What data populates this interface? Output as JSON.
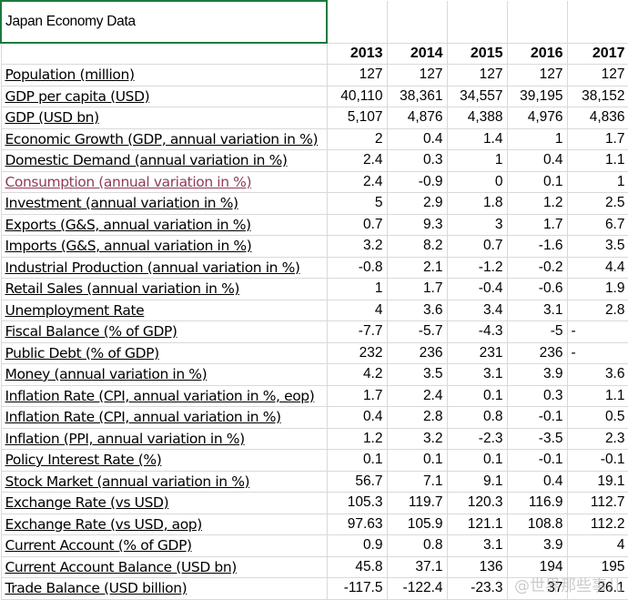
{
  "title": "Japan Economy Data",
  "years": [
    "2013",
    "2014",
    "2015",
    "2016",
    "2017"
  ],
  "rows": [
    {
      "label": "Population (million)",
      "values": [
        "127",
        "127",
        "127",
        "127",
        "127"
      ]
    },
    {
      "label": "GDP per capita (USD)",
      "values": [
        "40,110",
        "38,361",
        "34,557",
        "39,195",
        "38,152"
      ]
    },
    {
      "label": "GDP (USD bn)",
      "values": [
        "5,107",
        "4,876",
        "4,388",
        "4,976",
        "4,836"
      ]
    },
    {
      "label": "Economic Growth (GDP, annual variation in %)",
      "values": [
        "2",
        "0.4",
        "1.4",
        "1",
        "1.7"
      ]
    },
    {
      "label": "Domestic Demand (annual variation in %)",
      "values": [
        "2.4",
        "0.3",
        "1",
        "0.4",
        "1.1"
      ]
    },
    {
      "label": "Consumption (annual variation in %)",
      "values": [
        "2.4",
        "-0.9",
        "0",
        "0.1",
        "1"
      ]
    },
    {
      "label": "Investment (annual variation in %)",
      "values": [
        "5",
        "2.9",
        "1.8",
        "1.2",
        "2.5"
      ]
    },
    {
      "label": "Exports (G&S, annual variation in %)",
      "values": [
        "0.7",
        "9.3",
        "3",
        "1.7",
        "6.7"
      ]
    },
    {
      "label": "Imports (G&S, annual variation in %)",
      "values": [
        "3.2",
        "8.2",
        "0.7",
        "-1.6",
        "3.5"
      ]
    },
    {
      "label": "Industrial Production (annual variation in %)",
      "values": [
        "-0.8",
        "2.1",
        "-1.2",
        "-0.2",
        "4.4"
      ]
    },
    {
      "label": "Retail Sales (annual variation in %)",
      "values": [
        "1",
        "1.7",
        "-0.4",
        "-0.6",
        "1.9"
      ]
    },
    {
      "label": "Unemployment Rate",
      "values": [
        "4",
        "3.6",
        "3.4",
        "3.1",
        "2.8"
      ]
    },
    {
      "label": "Fiscal Balance (% of GDP)",
      "values": [
        "-7.7",
        "-5.7",
        "-4.3",
        "-5",
        "-"
      ]
    },
    {
      "label": "Public Debt (% of GDP)",
      "values": [
        "232",
        "236",
        "231",
        "236",
        "-"
      ]
    },
    {
      "label": "Money (annual variation in %)",
      "values": [
        "4.2",
        "3.5",
        "3.1",
        "3.9",
        "3.6"
      ]
    },
    {
      "label": "Inflation Rate (CPI, annual variation in %, eop)",
      "values": [
        "1.7",
        "2.4",
        "0.1",
        "0.3",
        "1.1"
      ]
    },
    {
      "label": "Inflation Rate (CPI, annual variation in %)",
      "values": [
        "0.4",
        "2.8",
        "0.8",
        "-0.1",
        "0.5"
      ]
    },
    {
      "label": "Inflation (PPI, annual variation in %)",
      "values": [
        "1.2",
        "3.2",
        "-2.3",
        "-3.5",
        "2.3"
      ]
    },
    {
      "label": "Policy Interest Rate (%)",
      "values": [
        "0.1",
        "0.1",
        "0.1",
        "-0.1",
        "-0.1"
      ]
    },
    {
      "label": "Stock Market (annual variation in %)",
      "values": [
        "56.7",
        "7.1",
        "9.1",
        "0.4",
        "19.1"
      ]
    },
    {
      "label": "Exchange Rate (vs USD)",
      "values": [
        "105.3",
        "119.7",
        "120.3",
        "116.9",
        "112.7"
      ]
    },
    {
      "label": "Exchange Rate (vs USD, aop)",
      "values": [
        "97.63",
        "105.9",
        "121.1",
        "108.8",
        "112.2"
      ]
    },
    {
      "label": "Current Account (% of GDP)",
      "values": [
        "0.9",
        "0.8",
        "3.1",
        "3.9",
        "4"
      ]
    },
    {
      "label": "Current Account Balance (USD bn)",
      "values": [
        "45.8",
        "37.1",
        "136",
        "194",
        "195"
      ]
    },
    {
      "label": "Trade Balance (USD billion)",
      "values": [
        "-117.5",
        "-122.4",
        "-23.3",
        "37",
        "26.1"
      ]
    }
  ],
  "watermark": "@世界那些事儿",
  "colors": {
    "link": "#1155cc",
    "visited_link": "#8e3b5a",
    "title_border": "#1b7a3e",
    "grid": "#d9d9d9"
  }
}
